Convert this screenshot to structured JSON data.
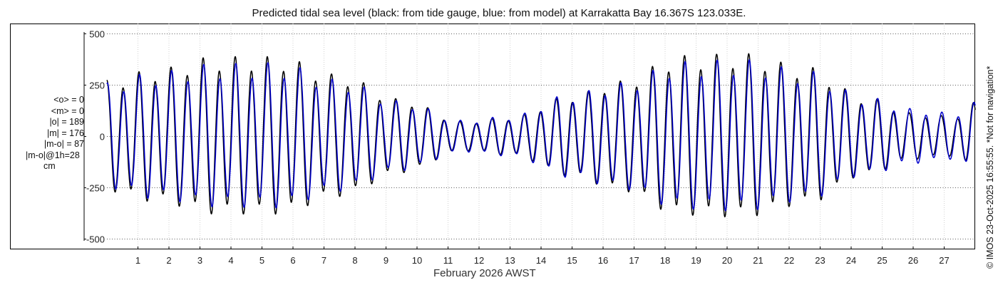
{
  "chart_data": {
    "type": "line",
    "title": "Predicted tidal sea level (black: from tide gauge, blue: from model) at Karrakatta Bay 16.367S 123.033E.",
    "xlabel": "February 2026 AWST",
    "ylabel": "",
    "xlim": [
      0,
      28
    ],
    "ylim": [
      -550,
      550
    ],
    "x_ticks": [
      1,
      2,
      3,
      4,
      5,
      6,
      7,
      8,
      9,
      10,
      11,
      12,
      13,
      14,
      15,
      16,
      17,
      18,
      19,
      20,
      21,
      22,
      23,
      24,
      25,
      26,
      27
    ],
    "x_tick_labels": [
      "1",
      "2",
      "3",
      "4",
      "5",
      "6",
      "7",
      "8",
      "9",
      "10",
      "11",
      "12",
      "13",
      "14",
      "15",
      "16",
      "17",
      "18",
      "19",
      "20",
      "21",
      "22",
      "23",
      "24",
      "25",
      "26",
      "27"
    ],
    "y_ticks": [
      500,
      250,
      0,
      -250,
      -500
    ],
    "y_tick_labels": [
      "500",
      "250",
      "0",
      "-250",
      "-500"
    ],
    "grid": true,
    "series": [
      {
        "name": "tide gauge",
        "color": "#000000",
        "amplitude_envelope": [
          {
            "day": 0,
            "amp": 265
          },
          {
            "day": 1.5,
            "amp": 315
          },
          {
            "day": 3.5,
            "amp": 375
          },
          {
            "day": 5.5,
            "amp": 375
          },
          {
            "day": 7.5,
            "amp": 290
          },
          {
            "day": 9.5,
            "amp": 175
          },
          {
            "day": 11.5,
            "amp": 70
          },
          {
            "day": 13,
            "amp": 90
          },
          {
            "day": 15,
            "amp": 195
          },
          {
            "day": 16.5,
            "amp": 260
          },
          {
            "day": 18.5,
            "amp": 380
          },
          {
            "day": 20.5,
            "amp": 390
          },
          {
            "day": 22.5,
            "amp": 330
          },
          {
            "day": 24.5,
            "amp": 185
          },
          {
            "day": 26,
            "amp": 110
          },
          {
            "day": 27.3,
            "amp": 95
          },
          {
            "day": 28,
            "amp": 160
          }
        ],
        "semidiurnal_period_days": 0.5175,
        "diurnal_ratio": 0.12
      },
      {
        "name": "model",
        "color": "#0000cc",
        "amplitude_envelope": [
          {
            "day": 0,
            "amp": 250
          },
          {
            "day": 1.5,
            "amp": 300
          },
          {
            "day": 3.5,
            "amp": 340
          },
          {
            "day": 5.5,
            "amp": 345
          },
          {
            "day": 7.5,
            "amp": 265
          },
          {
            "day": 9.5,
            "amp": 165
          },
          {
            "day": 11.5,
            "amp": 75
          },
          {
            "day": 13,
            "amp": 95
          },
          {
            "day": 15,
            "amp": 200
          },
          {
            "day": 16.5,
            "amp": 250
          },
          {
            "day": 18.5,
            "amp": 350
          },
          {
            "day": 20.5,
            "amp": 360
          },
          {
            "day": 22.5,
            "amp": 310
          },
          {
            "day": 24.5,
            "amp": 185
          },
          {
            "day": 26,
            "amp": 130
          },
          {
            "day": 27.3,
            "amp": 110
          },
          {
            "day": 28,
            "amp": 160
          }
        ],
        "semidiurnal_period_days": 0.5175,
        "diurnal_ratio": 0.14,
        "phase_lag_days": 0.02
      }
    ]
  },
  "stats": {
    "mean_obs": "<o> = 0",
    "mean_model": "<m> = 0",
    "abs_obs": "|o| = 189",
    "abs_model": "|m| = 176",
    "abs_diff": "|m-o| = 87",
    "abs_diff_1h": "|m-o|@1h=28",
    "unit": "cm"
  },
  "copyright": "© IMOS 23-Oct-2025 16:55:55. *Not for navigation*"
}
